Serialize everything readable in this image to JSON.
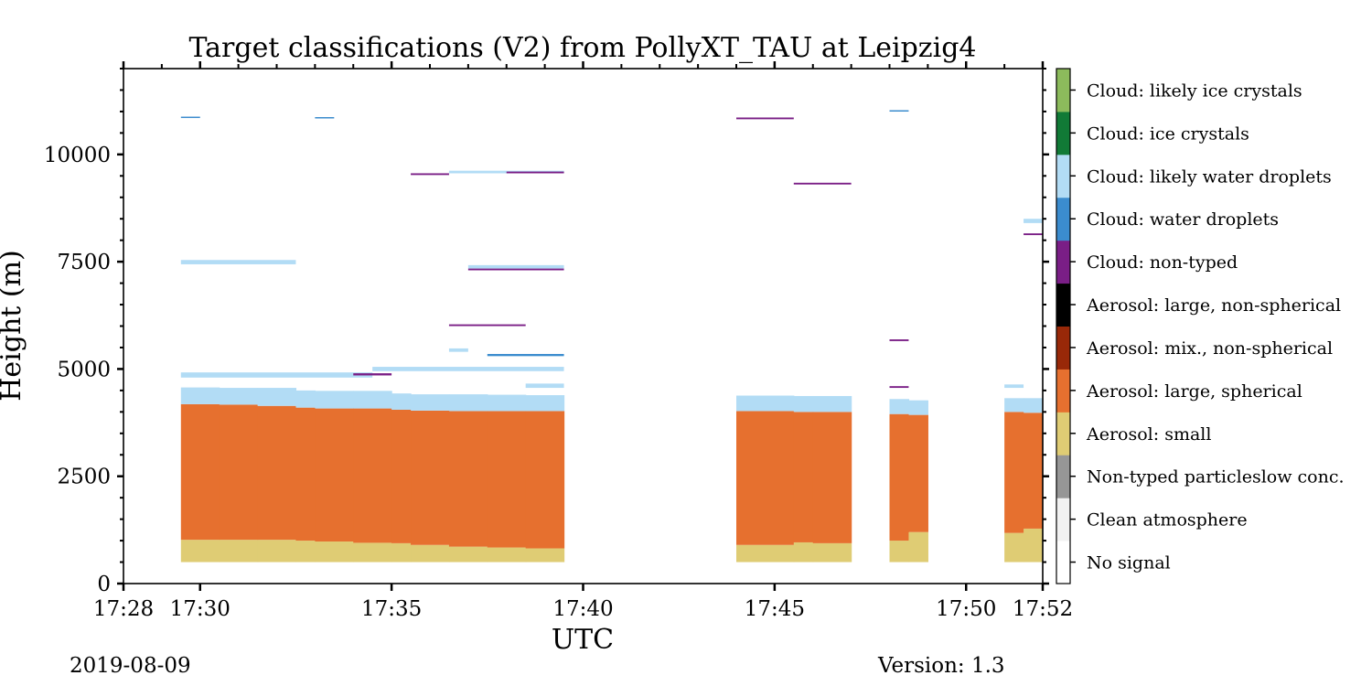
{
  "chart_data": {
    "type": "heatmap",
    "title": "Target classifications (V2) from PollyXT_TAU at Leipzig4",
    "xlabel": "UTC",
    "ylabel": "Height (m)",
    "xlim": [
      "17:28",
      "17:52"
    ],
    "ylim": [
      0,
      12000
    ],
    "x_ticks": [
      "17:28",
      "17:30",
      "17:35",
      "17:40",
      "17:45",
      "17:50",
      "17:52"
    ],
    "y_ticks": [
      "0",
      "2500",
      "5000",
      "7500",
      "10000"
    ],
    "colorbar": {
      "classes": [
        {
          "label": "No signal",
          "color": "#ffffff"
        },
        {
          "label": "Clean atmosphere",
          "color": "#f2f2f2"
        },
        {
          "label": "Non-typed particleslow conc.",
          "color": "#969696"
        },
        {
          "label": "Aerosol: small",
          "color": "#dfcc74"
        },
        {
          "label": "Aerosol: large, spherical",
          "color": "#e6702f"
        },
        {
          "label": "Aerosol: mix., non-spherical",
          "color": "#982808"
        },
        {
          "label": "Aerosol: large, non-spherical",
          "color": "#000000"
        },
        {
          "label": "Cloud: non-typed",
          "color": "#7a1e86"
        },
        {
          "label": "Cloud: water droplets",
          "color": "#3b8cce"
        },
        {
          "label": "Cloud: likely water droplets",
          "color": "#b2dcf5"
        },
        {
          "label": "Cloud: ice crystals",
          "color": "#117a36"
        },
        {
          "label": "Cloud: likely ice crystals",
          "color": "#8cbb5c"
        }
      ]
    },
    "segments": [
      {
        "start": "17:29:30",
        "end": "17:39:30",
        "columns": [
          {
            "t0": "17:29:30",
            "t1": "17:30:30",
            "small_base": 500,
            "small_top": 1020,
            "large_top": 4180,
            "lw_top": 4570
          },
          {
            "t0": "17:30:30",
            "t1": "17:31:30",
            "small_base": 500,
            "small_top": 1020,
            "large_top": 4170,
            "lw_top": 4560
          },
          {
            "t0": "17:31:30",
            "t1": "17:32:30",
            "small_base": 500,
            "small_top": 1020,
            "large_top": 4140,
            "lw_top": 4560
          },
          {
            "t0": "17:32:30",
            "t1": "17:33:00",
            "small_base": 500,
            "small_top": 1000,
            "large_top": 4100,
            "lw_top": 4500
          },
          {
            "t0": "17:33:00",
            "t1": "17:34:00",
            "small_base": 500,
            "small_top": 980,
            "large_top": 4080,
            "lw_top": 4490
          },
          {
            "t0": "17:34:00",
            "t1": "17:35:00",
            "small_base": 500,
            "small_top": 950,
            "large_top": 4080,
            "lw_top": 4490
          },
          {
            "t0": "17:35:00",
            "t1": "17:35:30",
            "small_base": 500,
            "small_top": 940,
            "large_top": 4050,
            "lw_top": 4430
          },
          {
            "t0": "17:35:30",
            "t1": "17:36:30",
            "small_base": 500,
            "small_top": 900,
            "large_top": 4030,
            "lw_top": 4410
          },
          {
            "t0": "17:36:30",
            "t1": "17:37:30",
            "small_base": 500,
            "small_top": 860,
            "large_top": 4020,
            "lw_top": 4410
          },
          {
            "t0": "17:37:30",
            "t1": "17:38:30",
            "small_base": 500,
            "small_top": 840,
            "large_top": 4020,
            "lw_top": 4400
          },
          {
            "t0": "17:38:30",
            "t1": "17:39:30",
            "small_base": 500,
            "small_top": 820,
            "large_top": 4020,
            "lw_top": 4390
          }
        ]
      },
      {
        "start": "17:44:00",
        "end": "17:47:00",
        "columns": [
          {
            "t0": "17:44:00",
            "t1": "17:45:30",
            "small_base": 500,
            "small_top": 900,
            "large_top": 4020,
            "lw_top": 4380
          },
          {
            "t0": "17:45:30",
            "t1": "17:46:00",
            "small_base": 500,
            "small_top": 960,
            "large_top": 4000,
            "lw_top": 4370
          },
          {
            "t0": "17:46:00",
            "t1": "17:47:00",
            "small_base": 500,
            "small_top": 940,
            "large_top": 4000,
            "lw_top": 4370
          }
        ]
      },
      {
        "start": "17:48:00",
        "end": "17:49:00",
        "columns": [
          {
            "t0": "17:48:00",
            "t1": "17:48:30",
            "small_base": 500,
            "small_top": 1000,
            "large_top": 3950,
            "lw_top": 4300
          },
          {
            "t0": "17:48:30",
            "t1": "17:49:00",
            "small_base": 500,
            "small_top": 1200,
            "large_top": 3930,
            "lw_top": 4270
          }
        ]
      },
      {
        "start": "17:51:00",
        "end": "17:52:00",
        "columns": [
          {
            "t0": "17:51:00",
            "t1": "17:51:30",
            "small_base": 500,
            "small_top": 1180,
            "large_top": 4000,
            "lw_top": 4320
          },
          {
            "t0": "17:51:30",
            "t1": "17:52:00",
            "small_base": 500,
            "small_top": 1280,
            "large_top": 3980,
            "lw_top": 4320
          }
        ]
      }
    ],
    "cloud_layers": [
      {
        "t0": "17:29:30",
        "t1": "17:34:30",
        "y0": 4800,
        "y1": 4920,
        "cls": "Cloud: likely water droplets"
      },
      {
        "t0": "17:34:30",
        "t1": "17:39:30",
        "y0": 4950,
        "y1": 5050,
        "cls": "Cloud: likely water droplets"
      },
      {
        "t0": "17:38:30",
        "t1": "17:39:30",
        "y0": 4560,
        "y1": 4660,
        "cls": "Cloud: likely water droplets"
      },
      {
        "t0": "17:29:30",
        "t1": "17:32:30",
        "y0": 7440,
        "y1": 7540,
        "cls": "Cloud: likely water droplets"
      },
      {
        "t0": "17:37:00",
        "t1": "17:39:30",
        "y0": 7340,
        "y1": 7420,
        "cls": "Cloud: likely water droplets"
      },
      {
        "t0": "17:36:30",
        "t1": "17:39:30",
        "y0": 9560,
        "y1": 9620,
        "cls": "Cloud: likely water droplets"
      },
      {
        "t0": "17:36:30",
        "t1": "17:37:00",
        "y0": 5400,
        "y1": 5480,
        "cls": "Cloud: likely water droplets"
      },
      {
        "t0": "17:51:00",
        "t1": "17:51:30",
        "y0": 4560,
        "y1": 4640,
        "cls": "Cloud: likely water droplets"
      },
      {
        "t0": "17:51:30",
        "t1": "17:52:00",
        "y0": 8400,
        "y1": 8500,
        "cls": "Cloud: likely water droplets"
      },
      {
        "t0": "17:37:30",
        "t1": "17:39:30",
        "y0": 5300,
        "y1": 5350,
        "cls": "Cloud: water droplets"
      },
      {
        "t0": "17:34:00",
        "t1": "17:35:00",
        "y0": 4850,
        "y1": 4900,
        "cls": "Cloud: non-typed"
      },
      {
        "t0": "17:35:30",
        "t1": "17:36:30",
        "y0": 9520,
        "y1": 9560,
        "cls": "Cloud: non-typed"
      },
      {
        "t0": "17:38:00",
        "t1": "17:39:30",
        "y0": 9560,
        "y1": 9600,
        "cls": "Cloud: non-typed"
      },
      {
        "t0": "17:37:00",
        "t1": "17:39:30",
        "y0": 7300,
        "y1": 7340,
        "cls": "Cloud: non-typed"
      },
      {
        "t0": "17:36:30",
        "t1": "17:38:30",
        "y0": 6000,
        "y1": 6040,
        "cls": "Cloud: non-typed"
      },
      {
        "t0": "17:44:00",
        "t1": "17:45:30",
        "y0": 10820,
        "y1": 10860,
        "cls": "Cloud: non-typed"
      },
      {
        "t0": "17:45:30",
        "t1": "17:47:00",
        "y0": 9300,
        "y1": 9340,
        "cls": "Cloud: non-typed"
      },
      {
        "t0": "17:51:30",
        "t1": "17:52:00",
        "y0": 8120,
        "y1": 8160,
        "cls": "Cloud: non-typed"
      },
      {
        "t0": "17:29:30",
        "t1": "17:30:00",
        "y0": 10850,
        "y1": 10880,
        "cls": "Cloud: water droplets"
      },
      {
        "t0": "17:33:00",
        "t1": "17:33:30",
        "y0": 10840,
        "y1": 10870,
        "cls": "Cloud: water droplets"
      },
      {
        "t0": "17:48:00",
        "t1": "17:48:30",
        "y0": 11000,
        "y1": 11030,
        "cls": "Cloud: water droplets"
      },
      {
        "t0": "17:48:00",
        "t1": "17:48:30",
        "y0": 5650,
        "y1": 5690,
        "cls": "Cloud: non-typed"
      },
      {
        "t0": "17:48:00",
        "t1": "17:48:30",
        "y0": 4560,
        "y1": 4600,
        "cls": "Cloud: non-typed"
      }
    ]
  },
  "footer": {
    "date": "2019-08-09",
    "version": "Version: 1.3"
  }
}
